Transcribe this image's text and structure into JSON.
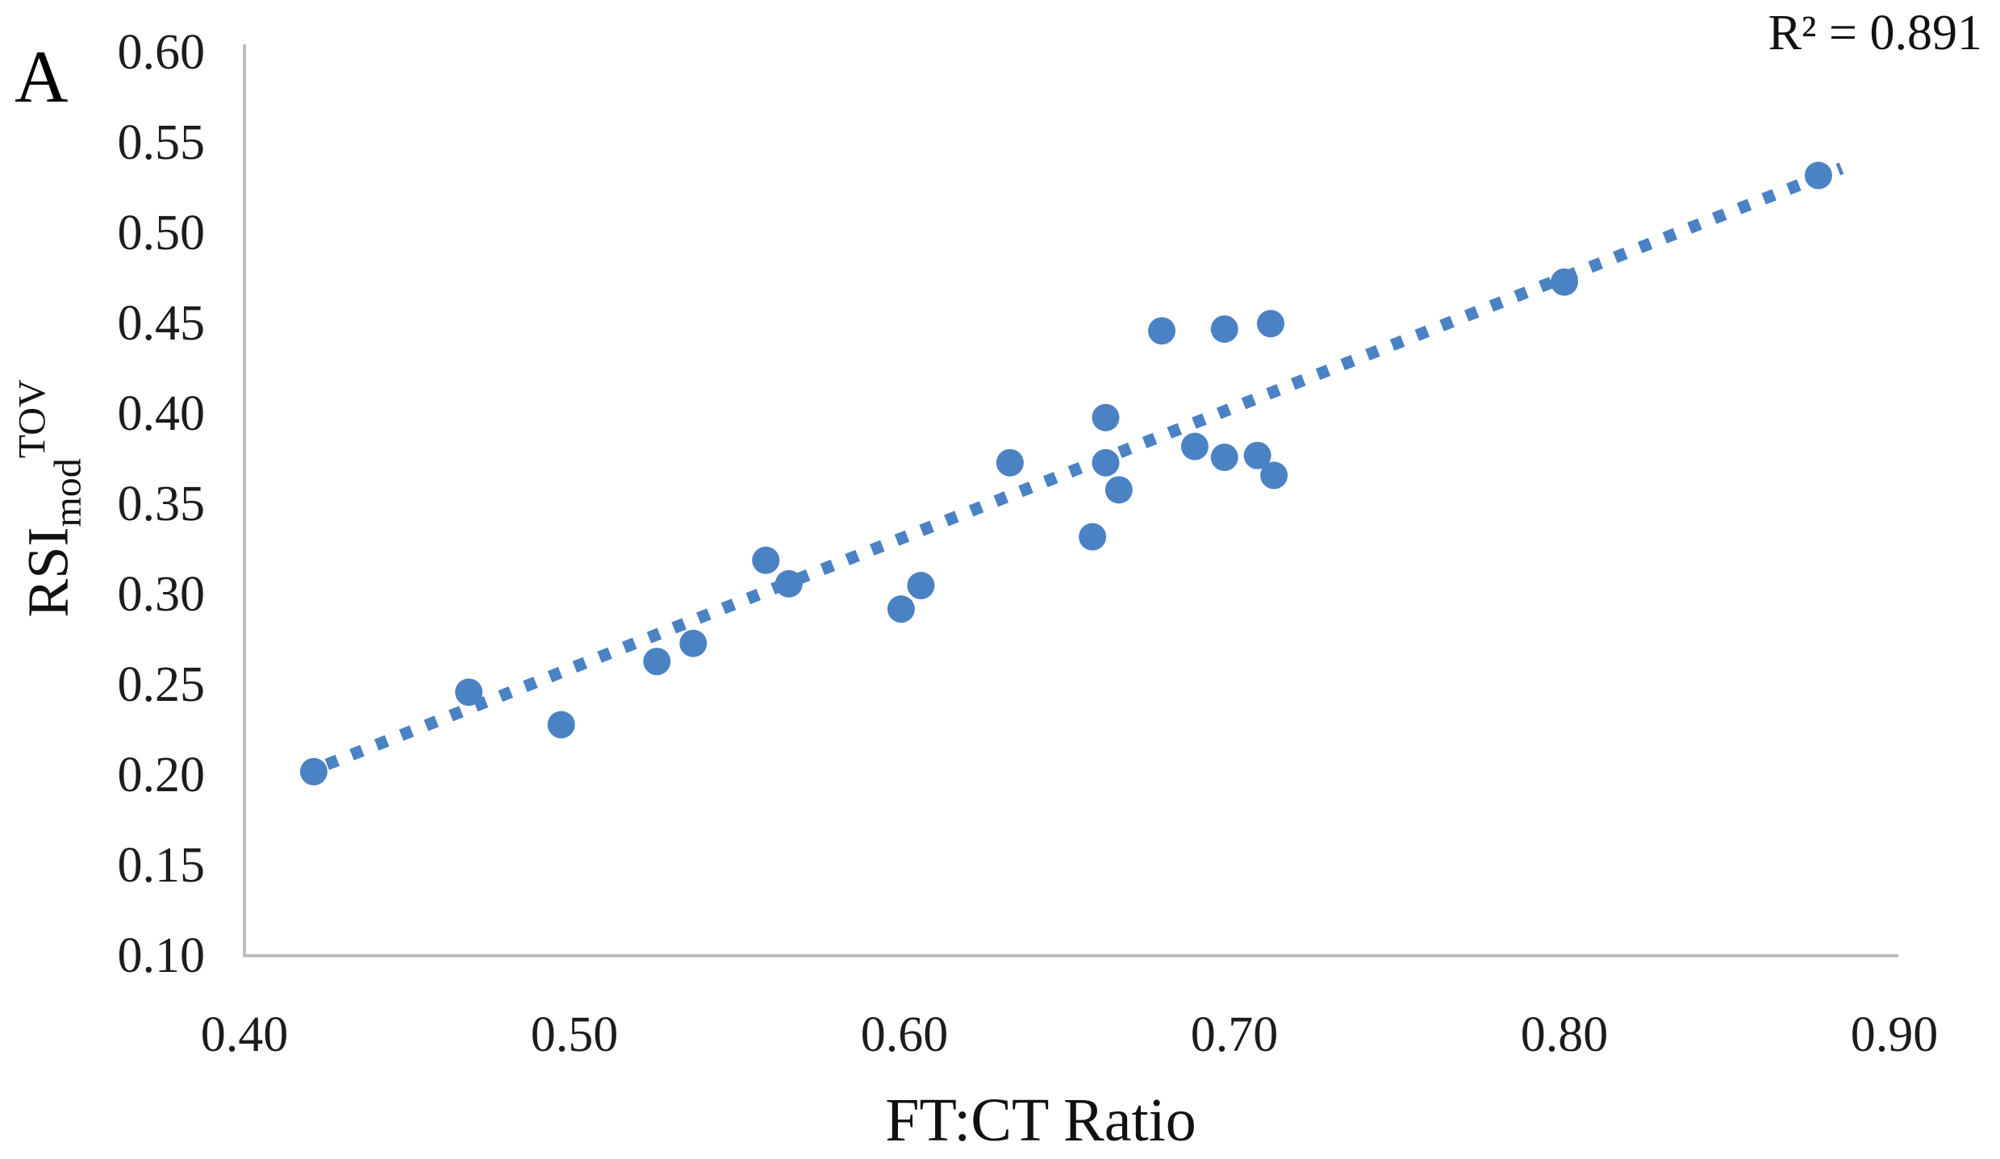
{
  "panel_label": "A",
  "annotation": {
    "r_squared_label": "R² = 0.891"
  },
  "chart_data": {
    "type": "scatter",
    "title": "",
    "xlabel": "FT:CT Ratio",
    "ylabel": "RSImodTOV",
    "ylabel_parts": {
      "base": "RSI",
      "sub": "mod",
      "sup": "TOV"
    },
    "xlim": [
      0.4,
      0.9
    ],
    "ylim": [
      0.1,
      0.6
    ],
    "x_ticks": [
      "0.40",
      "0.50",
      "0.60",
      "0.70",
      "0.80",
      "0.90"
    ],
    "y_ticks": [
      "0.60",
      "0.55",
      "0.50",
      "0.45",
      "0.40",
      "0.35",
      "0.30",
      "0.25",
      "0.20",
      "0.15",
      "0.10"
    ],
    "grid": false,
    "legend": "none",
    "r_squared": 0.891,
    "points": [
      [
        0.421,
        0.201
      ],
      [
        0.468,
        0.245
      ],
      [
        0.496,
        0.227
      ],
      [
        0.525,
        0.262
      ],
      [
        0.536,
        0.272
      ],
      [
        0.558,
        0.318
      ],
      [
        0.565,
        0.305
      ],
      [
        0.599,
        0.291
      ],
      [
        0.605,
        0.304
      ],
      [
        0.632,
        0.372
      ],
      [
        0.657,
        0.331
      ],
      [
        0.661,
        0.372
      ],
      [
        0.661,
        0.397
      ],
      [
        0.665,
        0.357
      ],
      [
        0.678,
        0.445
      ],
      [
        0.688,
        0.381
      ],
      [
        0.697,
        0.375
      ],
      [
        0.697,
        0.446
      ],
      [
        0.707,
        0.376
      ],
      [
        0.711,
        0.449
      ],
      [
        0.712,
        0.365
      ],
      [
        0.8,
        0.472
      ],
      [
        0.877,
        0.531
      ]
    ],
    "trendline": {
      "style": "dotted",
      "start": {
        "x": 0.425,
        "y": 0.205
      },
      "end": {
        "x": 0.884,
        "y": 0.535
      }
    },
    "marker_color": "#4B82C3",
    "axis_color": "#BFBFBF",
    "text_color": "#1c1c1c"
  }
}
